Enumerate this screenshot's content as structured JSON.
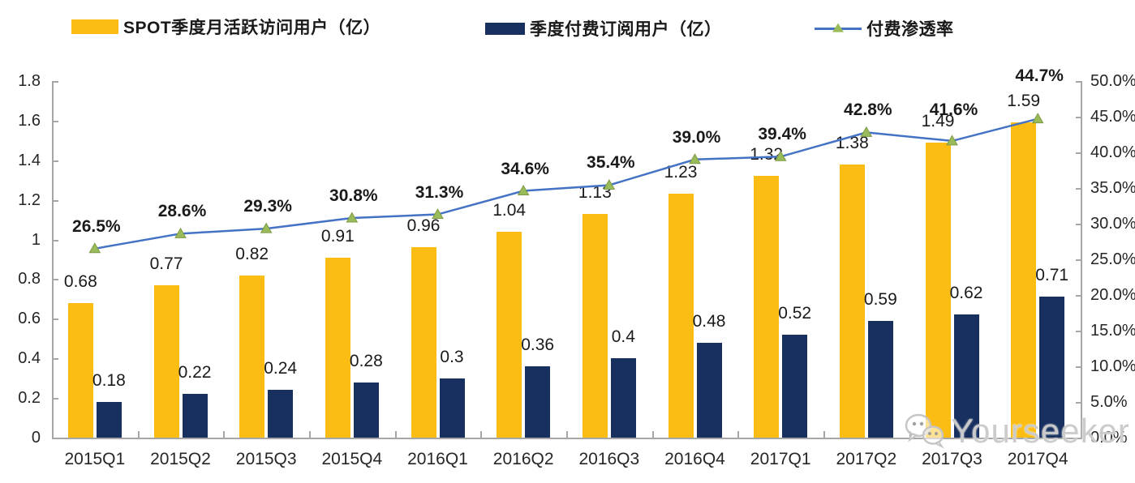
{
  "legend": {
    "items": [
      {
        "label": "SPOT季度月活跃访问用户（亿）",
        "type": "bar-swatch",
        "color": "#FBBD13"
      },
      {
        "label": "季度付费订阅用户（亿）",
        "type": "bar-swatch",
        "color": "#17305F"
      },
      {
        "label": "付费渗透率",
        "type": "line-swatch",
        "color": "#4472C4",
        "marker_color": "#9ABB59"
      }
    ]
  },
  "watermark": {
    "text": "Yourseeker",
    "icon": "wechat-icon"
  },
  "chart_data": {
    "type": "bar",
    "subtype": "grouped bars + line on secondary axis",
    "categories": [
      "2015Q1",
      "2015Q2",
      "2015Q3",
      "2015Q4",
      "2016Q1",
      "2016Q2",
      "2016Q3",
      "2016Q4",
      "2017Q1",
      "2017Q2",
      "2017Q3",
      "2017Q4"
    ],
    "series": [
      {
        "name": "SPOT季度月活跃访问用户（亿）",
        "type": "bar",
        "axis": "left",
        "color": "#FBBD13",
        "values": [
          0.68,
          0.77,
          0.82,
          0.91,
          0.96,
          1.04,
          1.13,
          1.23,
          1.32,
          1.38,
          1.49,
          1.59
        ],
        "labels": [
          "0.68",
          "0.77",
          "0.82",
          "0.91",
          "0.96",
          "1.04",
          "1.13",
          "1.23",
          "1.32",
          "1.38",
          "1.49",
          "1.59"
        ]
      },
      {
        "name": "季度付费订阅用户（亿）",
        "type": "bar",
        "axis": "left",
        "color": "#17305F",
        "values": [
          0.18,
          0.22,
          0.24,
          0.28,
          0.3,
          0.36,
          0.4,
          0.48,
          0.52,
          0.59,
          0.62,
          0.71
        ],
        "labels": [
          "0.18",
          "0.22",
          "0.24",
          "0.28",
          "0.3",
          "0.36",
          "0.4",
          "0.48",
          "0.52",
          "0.59",
          "0.62",
          "0.71"
        ]
      },
      {
        "name": "付费渗透率",
        "type": "line",
        "axis": "right",
        "color": "#4472C4",
        "marker": "triangle",
        "marker_color": "#9ABB59",
        "values": [
          26.5,
          28.6,
          29.3,
          30.8,
          31.3,
          34.6,
          35.4,
          39.0,
          39.4,
          42.8,
          41.6,
          44.7
        ],
        "labels": [
          "26.5%",
          "28.6%",
          "29.3%",
          "30.8%",
          "31.3%",
          "34.6%",
          "35.4%",
          "39.0%",
          "39.4%",
          "42.8%",
          "41.6%",
          "44.7%"
        ]
      }
    ],
    "left_axis": {
      "min": 0,
      "max": 1.8,
      "step": 0.2,
      "ticks": [
        "0",
        "0.2",
        "0.4",
        "0.6",
        "0.8",
        "1",
        "1.2",
        "1.4",
        "1.6",
        "1.8"
      ]
    },
    "right_axis": {
      "min": 0,
      "max": 50,
      "step": 5,
      "ticks": [
        "0.0%",
        "5.0%",
        "10.0%",
        "15.0%",
        "20.0%",
        "25.0%",
        "30.0%",
        "35.0%",
        "40.0%",
        "45.0%",
        "50.0%"
      ]
    },
    "grid": false,
    "legend_position": "top",
    "colors": {
      "axis": "#a6a6a6",
      "text": "#1a1a1a"
    }
  }
}
